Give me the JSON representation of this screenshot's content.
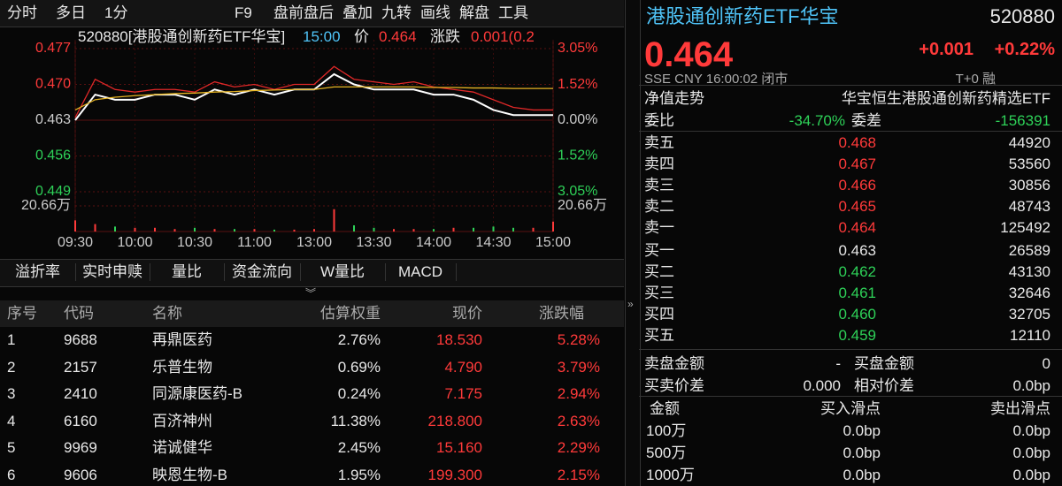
{
  "toolbar": {
    "left": [
      "分时",
      "多日",
      "1分"
    ],
    "right": [
      "F9",
      "盘前盘后",
      "叠加",
      "九转",
      "画线",
      "解盘",
      "工具"
    ]
  },
  "chart_header": {
    "name": "520880[港股通创新药ETF华宝]",
    "time": "15:00",
    "price_label": "价",
    "price": "0.464",
    "change_label": "涨跌",
    "change": "0.001(0.2"
  },
  "chart_data": {
    "type": "line",
    "x": [
      "09:30",
      "09:40",
      "09:50",
      "10:00",
      "10:10",
      "10:20",
      "10:30",
      "10:40",
      "10:50",
      "11:00",
      "11:10",
      "11:20",
      "11:30",
      "13:10",
      "13:20",
      "13:30",
      "13:40",
      "13:50",
      "14:00",
      "14:10",
      "14:20",
      "14:30",
      "14:40",
      "14:50",
      "15:00"
    ],
    "xticks": [
      "09:30",
      "10:00",
      "10:30",
      "11:00",
      "13:00",
      "13:30",
      "14:00",
      "14:30",
      "15:00"
    ],
    "series": [
      {
        "color": "#ffffff",
        "values": [
          0.463,
          0.468,
          0.467,
          0.467,
          0.468,
          0.468,
          0.467,
          0.469,
          0.468,
          0.469,
          0.468,
          0.469,
          0.469,
          0.472,
          0.47,
          0.469,
          0.469,
          0.469,
          0.468,
          0.468,
          0.467,
          0.465,
          0.464,
          0.464,
          0.464
        ]
      },
      {
        "color": "#e02828",
        "values": [
          0.4635,
          0.471,
          0.469,
          0.4685,
          0.469,
          0.469,
          0.4685,
          0.4705,
          0.4695,
          0.47,
          0.469,
          0.47,
          0.47,
          0.4735,
          0.471,
          0.4705,
          0.47,
          0.4705,
          0.4695,
          0.469,
          0.4685,
          0.467,
          0.4655,
          0.465,
          0.465
        ]
      },
      {
        "color": "#e6b422",
        "values": [
          0.465,
          0.467,
          0.4675,
          0.4678,
          0.468,
          0.4682,
          0.4683,
          0.4685,
          0.4686,
          0.4688,
          0.4689,
          0.469,
          0.469,
          0.4695,
          0.4695,
          0.4695,
          0.4695,
          0.4695,
          0.4694,
          0.4694,
          0.4693,
          0.4693,
          0.4692,
          0.4692,
          0.4692
        ]
      }
    ],
    "ylim": [
      0.449,
      0.477
    ],
    "yticks": [
      {
        "value": 0.477,
        "label": "0.477"
      },
      {
        "value": 0.47,
        "label": "0.470"
      },
      {
        "value": 0.463,
        "label": "0.463"
      },
      {
        "value": 0.456,
        "label": "0.456"
      },
      {
        "value": 0.449,
        "label": "0.449"
      }
    ],
    "y2lim": [
      -3.05,
      3.05
    ],
    "y2ticks": [
      {
        "value": 3.05,
        "label": "3.05%"
      },
      {
        "value": 1.52,
        "label": "1.52%"
      },
      {
        "value": 0,
        "label": "0.00%"
      },
      {
        "value": -1.52,
        "label": "1.52%"
      },
      {
        "value": -3.05,
        "label": "3.05%"
      }
    ],
    "volume": [
      9,
      6,
      4,
      3,
      3,
      2,
      3,
      2,
      2,
      2,
      1.5,
      1.5,
      2,
      18,
      5,
      3,
      2,
      2,
      2,
      3,
      3,
      4,
      3,
      3,
      8
    ],
    "vlim": [
      0,
      20.66
    ],
    "vticks": [
      {
        "value": 20.66,
        "label": "20.66万"
      }
    ]
  },
  "tabs": [
    "溢折率",
    "实时申赎",
    "量比",
    "资金流向",
    "W量比",
    "MACD"
  ],
  "table": {
    "header": [
      "序号",
      "代码",
      "名称",
      "估算权重",
      "现价",
      "涨跌幅"
    ],
    "rows": [
      [
        "1",
        "9688",
        "再鼎医药",
        "2.76%",
        "18.530",
        "5.28%"
      ],
      [
        "2",
        "2157",
        "乐普生物",
        "0.69%",
        "4.790",
        "3.79%"
      ],
      [
        "3",
        "2410",
        "同源康医药-B",
        "0.24%",
        "7.175",
        "2.94%"
      ],
      [
        "4",
        "6160",
        "百济神州",
        "11.38%",
        "218.800",
        "2.63%"
      ],
      [
        "5",
        "9969",
        "诺诚健华",
        "2.45%",
        "15.160",
        "2.29%"
      ],
      [
        "6",
        "9606",
        "映恩生物-B",
        "1.95%",
        "199.300",
        "2.15%"
      ]
    ]
  },
  "quote": {
    "title": "港股通创新药ETF华宝",
    "code": "520880",
    "price": "0.464",
    "change": "+0.001",
    "pct": "+0.22%",
    "info": "SSE  CNY  16:00:02  闭市",
    "tag": "T+0 融",
    "nav": "净值走势",
    "fund": "华宝恒生港股通创新药精选ETF",
    "ratio_label": "委比",
    "ratio": "-34.70%",
    "diff_label": "委差",
    "diff": "-156391",
    "asks": [
      [
        "卖五",
        "0.468",
        "44920"
      ],
      [
        "卖四",
        "0.467",
        "53560"
      ],
      [
        "卖三",
        "0.466",
        "30856"
      ],
      [
        "卖二",
        "0.465",
        "48743"
      ],
      [
        "卖一",
        "0.464",
        "125492"
      ]
    ],
    "bids": [
      [
        "买一",
        "0.463",
        "26589"
      ],
      [
        "买二",
        "0.462",
        "43130"
      ],
      [
        "买三",
        "0.461",
        "32646"
      ],
      [
        "买四",
        "0.460",
        "32705"
      ],
      [
        "买五",
        "0.459",
        "12110"
      ]
    ],
    "stats": [
      [
        "卖盘金额",
        "-",
        "买盘金额",
        "0"
      ],
      [
        "买卖价差",
        "0.000",
        "相对价差",
        "0.0bp"
      ]
    ],
    "slip_header": [
      "金额",
      "买入滑点",
      "卖出滑点"
    ],
    "slip": [
      [
        "100万",
        "0.0bp",
        "0.0bp"
      ],
      [
        "500万",
        "0.0bp",
        "0.0bp"
      ],
      [
        "1000万",
        "0.0bp",
        "0.0bp"
      ]
    ]
  }
}
